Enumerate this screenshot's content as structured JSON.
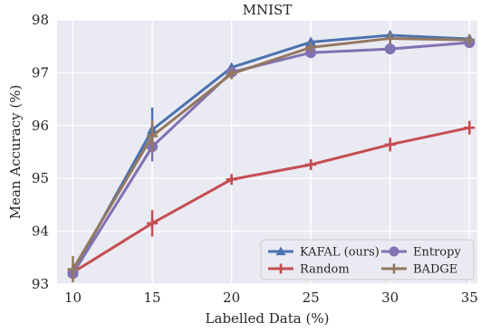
{
  "chart_data": {
    "type": "line",
    "title": "MNIST",
    "xlabel": "Labelled Data (%)",
    "ylabel": "Mean Accuracy (%)",
    "x": [
      10,
      15,
      20,
      25,
      30,
      35
    ],
    "xlim": [
      9,
      35.5
    ],
    "ylim": [
      93,
      98
    ],
    "xticks": [
      10,
      15,
      20,
      25,
      30,
      35
    ],
    "yticks": [
      93,
      94,
      95,
      96,
      97,
      98
    ],
    "grid": true,
    "legend_position": "lower-right",
    "background_color": "#eaeaf2",
    "series": [
      {
        "name": "KAFAL (ours)",
        "color": "#4c72b0",
        "marker": "triangle",
        "values": [
          93.22,
          95.92,
          97.1,
          97.58,
          97.71,
          97.64
        ],
        "errors": [
          0.1,
          0.42,
          0.06,
          0.05,
          0.04,
          0.04
        ]
      },
      {
        "name": "Random",
        "color": "#c44e52",
        "marker": "plus",
        "values": [
          93.22,
          94.15,
          94.98,
          95.26,
          95.64,
          95.96
        ],
        "errors": [
          0.15,
          0.25,
          0.05,
          0.08,
          0.13,
          0.13
        ]
      },
      {
        "name": "Entropy",
        "color": "#8172b3",
        "marker": "circle",
        "values": [
          93.2,
          95.6,
          97.01,
          97.38,
          97.45,
          97.57
        ],
        "errors": [
          0.1,
          0.28,
          0.06,
          0.05,
          0.04,
          0.04
        ]
      },
      {
        "name": "BADGE",
        "color": "#937860",
        "marker": "plus",
        "values": [
          93.28,
          95.8,
          96.98,
          97.48,
          97.65,
          97.62
        ],
        "errors": [
          0.25,
          0.3,
          0.06,
          0.05,
          0.04,
          0.04
        ]
      }
    ],
    "legend": [
      {
        "label": "KAFAL (ours)",
        "series": 0
      },
      {
        "label": "Entropy",
        "series": 2
      },
      {
        "label": "Random",
        "series": 1
      },
      {
        "label": "BADGE",
        "series": 3
      }
    ]
  }
}
